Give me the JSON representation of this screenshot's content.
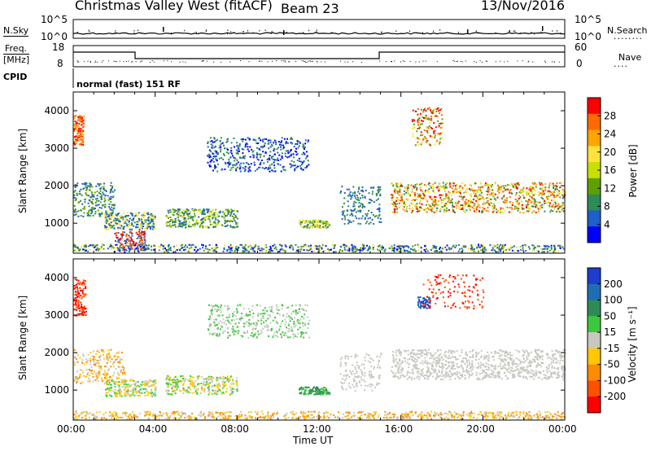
{
  "header": {
    "title": "Christmas Valley West (fitACF)",
    "beam": "Beam 23",
    "date": "13/Nov/2016"
  },
  "noise_panel": {
    "left_label": "N.Sky",
    "right_label": "N.Search",
    "right_marker": "........",
    "ticks_left": [
      "10^5",
      "10^0"
    ],
    "ticks_right": [
      "10^5",
      "10^0"
    ]
  },
  "freq_panel": {
    "left_label_line1": "Freq.",
    "left_label_line2": "[MHz]",
    "right_label": "Nave",
    "right_marker": "....",
    "ticks_left": [
      "18",
      "8"
    ],
    "ticks_right": [
      "60",
      "0"
    ]
  },
  "cpid": {
    "label": "CPID",
    "value": "normal (fast) 151 RF"
  },
  "x_axis": {
    "label": "Time UT",
    "ticks": [
      "00:00",
      "04:00",
      "08:00",
      "12:00",
      "16:00",
      "20:00",
      "00:00"
    ]
  },
  "chart_data": [
    {
      "type": "heatmap",
      "panel": "power",
      "ylabel": "Slant Range [km]",
      "y_ticks": [
        1000,
        2000,
        3000,
        4000
      ],
      "ylim": [
        200,
        4500
      ],
      "xlim_hours": [
        0,
        24
      ],
      "colorbar": {
        "label": "Power [dB]",
        "ticks": [
          "28",
          "24",
          "20",
          "16",
          "12",
          "8",
          "4"
        ],
        "colors": [
          "#ff0000",
          "#ff6a00",
          "#ffa500",
          "#ffe23c",
          "#c8e000",
          "#5fa000",
          "#2e8b57",
          "#1e5fc8",
          "#0000ff"
        ]
      }
    },
    {
      "type": "heatmap",
      "panel": "velocity",
      "ylabel": "Slant Range [km]",
      "y_ticks": [
        1000,
        2000,
        3000,
        4000
      ],
      "ylim": [
        200,
        4500
      ],
      "xlim_hours": [
        0,
        24
      ],
      "colorbar": {
        "label": "Velocity [m s⁻¹]",
        "ticks": [
          "200",
          "100",
          "50",
          "15",
          "-15",
          "-50",
          "-100",
          "-200"
        ],
        "colors": [
          "#1e3ccd",
          "#1e6eb4",
          "#2e8b57",
          "#3cc83c",
          "#c8c8c0",
          "#ffc800",
          "#ff8c00",
          "#ff5000",
          "#ff0000"
        ]
      }
    }
  ]
}
